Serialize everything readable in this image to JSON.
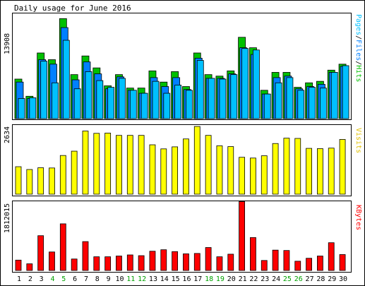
{
  "chart_data": [
    {
      "type": "bar",
      "title": "Daily usage for June 2016",
      "ymax_label": "13908",
      "right_label": {
        "pages": "Pages",
        "sep1": "/",
        "files": "Files",
        "sep2": "/",
        "hits": "Hits"
      },
      "ylim": [
        0,
        13908
      ],
      "categories": [
        "1",
        "2",
        "3",
        "4",
        "5",
        "6",
        "7",
        "8",
        "9",
        "10",
        "11",
        "12",
        "13",
        "14",
        "15",
        "16",
        "17",
        "18",
        "19",
        "20",
        "21",
        "22",
        "23",
        "24",
        "25",
        "26",
        "27",
        "28",
        "29",
        "30"
      ],
      "weekend_days": [
        "4",
        "5",
        "11",
        "12",
        "18",
        "19",
        "25",
        "26"
      ],
      "colors": {
        "hits": "#00c000",
        "files": "#0080ff",
        "pages": "#00c0ff",
        "weekend_label": "#00a000"
      },
      "series": [
        {
          "name": "Hits",
          "values": [
            5300,
            3000,
            8800,
            7900,
            13400,
            5900,
            8400,
            6800,
            4400,
            5900,
            4100,
            4100,
            6400,
            4900,
            6300,
            4300,
            8800,
            5900,
            5700,
            6400,
            10900,
            9500,
            3800,
            6200,
            6200,
            4200,
            4800,
            5000,
            6500,
            7300
          ]
        },
        {
          "name": "Files",
          "values": [
            4900,
            2700,
            7900,
            7300,
            12200,
            5200,
            7600,
            6000,
            4000,
            5600,
            3800,
            3400,
            5500,
            4300,
            5500,
            3900,
            8100,
            5400,
            5400,
            6000,
            9500,
            8600,
            3300,
            5500,
            5700,
            4000,
            4300,
            4600,
            6200,
            7000
          ]
        },
        {
          "name": "Pages",
          "values": [
            2700,
            2800,
            7700,
            4800,
            10500,
            4000,
            6300,
            5100,
            4200,
            5400,
            3800,
            3400,
            5000,
            3400,
            4500,
            3800,
            7800,
            5400,
            5300,
            5900,
            9400,
            9200,
            3300,
            4800,
            5500,
            3800,
            4200,
            4100,
            6200,
            7100
          ]
        }
      ]
    },
    {
      "type": "bar",
      "ymax_label": "2634",
      "right_label": "Visits",
      "ylim": [
        0,
        2634
      ],
      "colors": {
        "visits": "#ffff00"
      },
      "categories": [
        "1",
        "2",
        "3",
        "4",
        "5",
        "6",
        "7",
        "8",
        "9",
        "10",
        "11",
        "12",
        "13",
        "14",
        "15",
        "16",
        "17",
        "18",
        "19",
        "20",
        "21",
        "22",
        "23",
        "24",
        "25",
        "26",
        "27",
        "28",
        "29",
        "30"
      ],
      "series": [
        {
          "name": "Visits",
          "values": [
            1080,
            970,
            1040,
            1030,
            1520,
            1690,
            2480,
            2390,
            2400,
            2310,
            2310,
            2310,
            1940,
            1780,
            1860,
            2170,
            2660,
            2310,
            1900,
            1870,
            1450,
            1420,
            1510,
            1990,
            2200,
            2190,
            1800,
            1790,
            1810,
            2150
          ]
        }
      ]
    },
    {
      "type": "bar",
      "ymax_label": "1812015",
      "right_label": "KBytes",
      "ylim": [
        0,
        1812015
      ],
      "colors": {
        "kbytes": "#ff0000"
      },
      "categories": [
        "1",
        "2",
        "3",
        "4",
        "5",
        "6",
        "7",
        "8",
        "9",
        "10",
        "11",
        "12",
        "13",
        "14",
        "15",
        "16",
        "17",
        "18",
        "19",
        "20",
        "21",
        "22",
        "23",
        "24",
        "25",
        "26",
        "27",
        "28",
        "29",
        "30"
      ],
      "series": [
        {
          "name": "KBytes",
          "values": [
            280000,
            180000,
            940000,
            500000,
            1260000,
            310000,
            780000,
            370000,
            370000,
            390000,
            420000,
            400000,
            520000,
            560000,
            510000,
            450000,
            460000,
            620000,
            370000,
            440000,
            1860000,
            890000,
            270000,
            550000,
            540000,
            250000,
            330000,
            390000,
            750000,
            430000
          ]
        }
      ]
    }
  ]
}
